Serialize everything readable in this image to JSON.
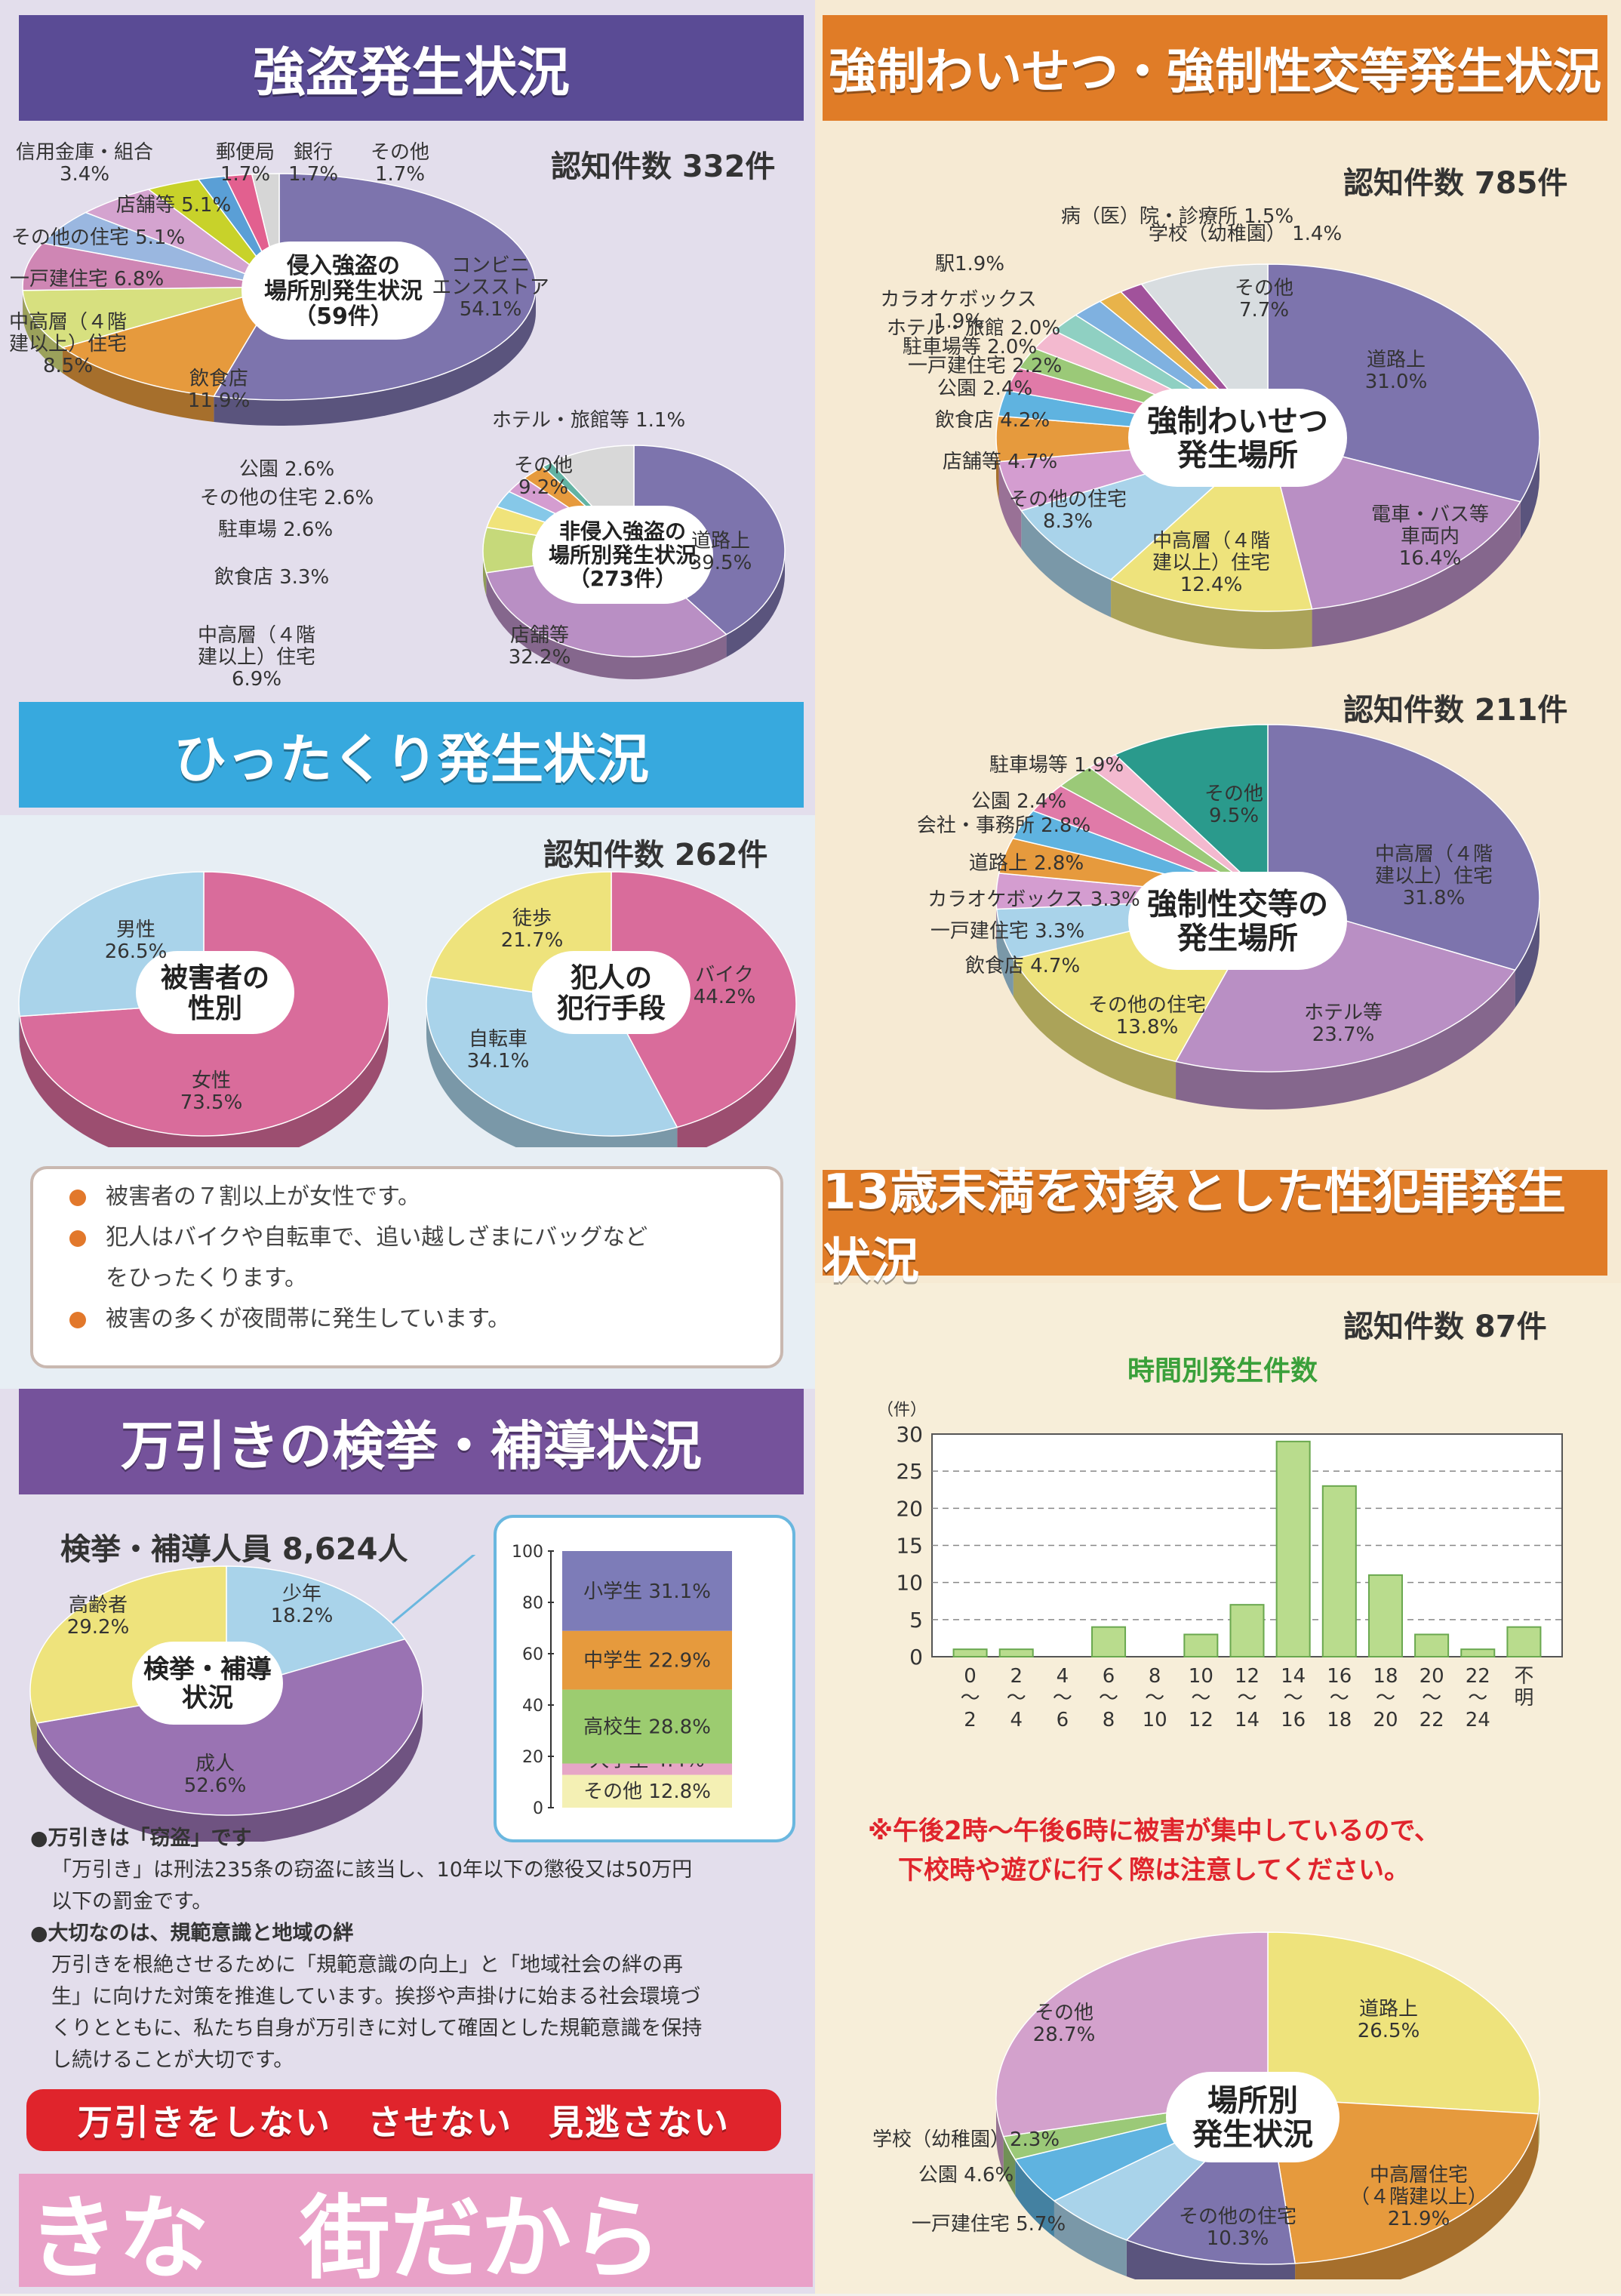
{
  "sections": {
    "robbery": {
      "title": "強盗発生状況",
      "count": "認知件数 332件"
    },
    "snatch": {
      "title": "ひったくり発生状況",
      "count": "認知件数 262件"
    },
    "shoplift": {
      "title": "万引きの検挙・補導状況",
      "count": "検挙・補導人員 8,624人"
    },
    "sexual": {
      "title": "強制わいせつ・強制性交等発生状況",
      "count1": "認知件数 785件",
      "count2": "認知件数 211件"
    },
    "under13": {
      "title": "13歳未満を対象とした性犯罪発生状況",
      "count": "認知件数 87件"
    }
  },
  "notes": {
    "items": [
      "被害者の７割以上が女性です。",
      "犯人はバイクや自転車で、追い越しざまにバッグなど",
      "をひったくります。",
      "被害の多くが夜間帯に発生しています。"
    ]
  },
  "shoplift_text": {
    "h1": "●万引きは「窃盗」です",
    "b1a": "「万引き」は刑法235条の窃盗に該当し、10年以下の懲役又は50万円",
    "b1b": "以下の罰金です。",
    "h2": "●大切なのは、規範意識と地域の絆",
    "b2a": "万引きを根絶させるために「規範意識の向上」と「地域社会の絆の再",
    "b2b": "生」に向けた対策を推進しています。挨拶や声掛けに始まる社会環境づ",
    "b2c": "くりとともに、私たち自身が万引きに対して確固とした規範意識を保持",
    "b2d": "し続けることが大切です。"
  },
  "slogan": "万引きをしない　させない　見逃さない",
  "bottom_strip": "きな　街だから",
  "footnote": {
    "line1": "※午後2時～午後6時に被害が集中しているので、",
    "line2": "下校時や遊びに行く際は注意してください。"
  },
  "colors": {
    "purple_banner": "#5c4b93",
    "blue_banner": "#35a6dc",
    "orange_banner": "#e07c27",
    "shoplift_banner": "#74519a",
    "left_bg": "#e2ddee",
    "right_bg": "#f6ead4"
  },
  "chart_data": [
    {
      "id": "robbery-intrusion",
      "type": "pie",
      "center_label": [
        "侵入強盗の",
        "場所別発生状況",
        "（59件）"
      ],
      "slices": [
        {
          "label": "コンビニエンスストア",
          "value": 54.1,
          "color": "#7d74ad"
        },
        {
          "label": "飲食店",
          "value": 11.9,
          "color": "#e69a3d"
        },
        {
          "label": "中高層（４階建以上）住宅",
          "value": 8.5,
          "color": "#d7e07f"
        },
        {
          "label": "一戸建住宅",
          "value": 6.8,
          "color": "#cf86b4"
        },
        {
          "label": "その他の住宅",
          "value": 5.1,
          "color": "#9ab7e0"
        },
        {
          "label": "店舗等",
          "value": 5.1,
          "color": "#d4a3cf"
        },
        {
          "label": "信用金庫・組合",
          "value": 3.4,
          "color": "#c8d22a"
        },
        {
          "label": "郵便局",
          "value": 1.7,
          "color": "#5a9fd6"
        },
        {
          "label": "銀行",
          "value": 1.7,
          "color": "#e2608f"
        },
        {
          "label": "その他",
          "value": 1.7,
          "color": "#d6d6d6"
        }
      ],
      "labels": [
        {
          "text": "コンビニ",
          "text2": "エンスストア",
          "text3": "54.1%"
        },
        {
          "text": "飲食店",
          "text2": "11.9%"
        },
        {
          "text": "中高層（４階",
          "text2": "建以上）住宅",
          "text3": "8.5%"
        },
        {
          "text": "一戸建住宅 6.8%"
        },
        {
          "text": "その他の住宅 5.1%"
        },
        {
          "text": "店舗等 5.1%"
        },
        {
          "text": "信用金庫・組合",
          "text2": "3.4%"
        },
        {
          "text": "郵便局",
          "text2": "1.7%"
        },
        {
          "text": "銀行",
          "text2": "1.7%"
        },
        {
          "text": "その他",
          "text2": "1.7%"
        }
      ]
    },
    {
      "id": "robbery-nonintrusion",
      "type": "pie",
      "center_label": [
        "非侵入強盗の",
        "場所別発生状況",
        "（273件）"
      ],
      "slices": [
        {
          "label": "道路上",
          "value": 39.5,
          "color": "#7d74ad"
        },
        {
          "label": "店舗等",
          "value": 32.2,
          "color": "#b98fc4"
        },
        {
          "label": "中高層（４階建以上）住宅",
          "value": 6.9,
          "color": "#c6d97a"
        },
        {
          "label": "飲食店",
          "value": 3.3,
          "color": "#f0e37a"
        },
        {
          "label": "駐車場",
          "value": 2.6,
          "color": "#86c8e8"
        },
        {
          "label": "その他の住宅",
          "value": 2.6,
          "color": "#d49dd0"
        },
        {
          "label": "公園",
          "value": 2.6,
          "color": "#e69a3d"
        },
        {
          "label": "ホテル・旅館等",
          "value": 1.1,
          "color": "#62b3a3"
        },
        {
          "label": "その他",
          "value": 9.2,
          "color": "#d8d8d8"
        }
      ],
      "labels": [
        {
          "text": "道路上",
          "text2": "39.5%"
        },
        {
          "text": "店舗等",
          "text2": "32.2%"
        },
        {
          "text": "中高層（４階",
          "text2": "建以上）住宅",
          "text3": "6.9%"
        },
        {
          "text": "飲食店 3.3%"
        },
        {
          "text": "駐車場 2.6%"
        },
        {
          "text": "その他の住宅 2.6%"
        },
        {
          "text": "公園 2.6%"
        },
        {
          "text": "ホテル・旅館等 1.1%"
        },
        {
          "text": "その他",
          "text2": "9.2%"
        }
      ]
    },
    {
      "id": "snatch-gender",
      "type": "pie",
      "center_label": [
        "被害者の",
        "性別"
      ],
      "slices": [
        {
          "label": "女性",
          "value": 73.5,
          "color": "#d96c9b"
        },
        {
          "label": "男性",
          "value": 26.5,
          "color": "#a9d3ea"
        }
      ],
      "labels": [
        {
          "text": "女性",
          "text2": "73.5%"
        },
        {
          "text": "男性",
          "text2": "26.5%"
        }
      ]
    },
    {
      "id": "snatch-method",
      "type": "pie",
      "center_label": [
        "犯人の",
        "犯行手段"
      ],
      "slices": [
        {
          "label": "バイク",
          "value": 44.2,
          "color": "#d96c9b"
        },
        {
          "label": "自転車",
          "value": 34.1,
          "color": "#a9d3ea"
        },
        {
          "label": "徒歩",
          "value": 21.7,
          "color": "#eee37c"
        }
      ],
      "labels": [
        {
          "text": "バイク",
          "text2": "44.2%"
        },
        {
          "text": "自転車",
          "text2": "34.1%"
        },
        {
          "text": "徒歩",
          "text2": "21.7%"
        }
      ]
    },
    {
      "id": "shoplift-pie",
      "type": "pie",
      "center_label": [
        "検挙・補導",
        "状況"
      ],
      "slices": [
        {
          "label": "少年",
          "value": 18.2,
          "color": "#a9d3ea"
        },
        {
          "label": "成人",
          "value": 52.6,
          "color": "#9a73b3"
        },
        {
          "label": "高齢者",
          "value": 29.2,
          "color": "#eee37c"
        }
      ],
      "labels": [
        {
          "text": "少年",
          "text2": "18.2%"
        },
        {
          "text": "成人",
          "text2": "52.6%"
        },
        {
          "text": "高齢者",
          "text2": "29.2%"
        }
      ]
    },
    {
      "id": "shoplift-juvenile",
      "type": "bar",
      "stacked": true,
      "ylim": [
        0,
        100
      ],
      "ticks": [
        "0",
        "20",
        "40",
        "60",
        "80",
        "100"
      ],
      "series": [
        {
          "name": "その他",
          "value": 12.8,
          "color": "#f4f0b4",
          "label": "その他 12.8%"
        },
        {
          "name": "大学生",
          "value": 4.4,
          "color": "#e6a6c6",
          "label": "大学生 4.4%"
        },
        {
          "name": "高校生",
          "value": 28.8,
          "color": "#9ccc70",
          "label": "高校生 28.8%"
        },
        {
          "name": "中学生",
          "value": 22.9,
          "color": "#e69a3d",
          "label": "中学生 22.9%"
        },
        {
          "name": "小学生",
          "value": 31.1,
          "color": "#7d7cb8",
          "label": "小学生 31.1%"
        }
      ]
    },
    {
      "id": "indecent-assault",
      "type": "pie",
      "center_label": [
        "強制わいせつ",
        "発生場所"
      ],
      "slices": [
        {
          "label": "道路上",
          "value": 31.0,
          "color": "#7d74ad"
        },
        {
          "label": "電車・バス等車両内",
          "value": 16.4,
          "color": "#b98fc4"
        },
        {
          "label": "中高層（４階建以上）住宅",
          "value": 12.4,
          "color": "#eee37c"
        },
        {
          "label": "その他の住宅",
          "value": 8.3,
          "color": "#a9d3ea"
        },
        {
          "label": "店舗等",
          "value": 4.7,
          "color": "#d49dd0"
        },
        {
          "label": "飲食店",
          "value": 4.2,
          "color": "#e69a3d"
        },
        {
          "label": "公園",
          "value": 2.4,
          "color": "#5fb3e0"
        },
        {
          "label": "一戸建住宅",
          "value": 2.2,
          "color": "#e07aa8"
        },
        {
          "label": "駐車場等",
          "value": 2.0,
          "color": "#9bc978"
        },
        {
          "label": "ホテル・旅館",
          "value": 2.0,
          "color": "#f3b9cf"
        },
        {
          "label": "カラオケボックス",
          "value": 1.9,
          "color": "#8fd0c2"
        },
        {
          "label": "駅",
          "value": 1.9,
          "color": "#7fb1e0"
        },
        {
          "label": "病（医）院・診療所",
          "value": 1.5,
          "color": "#e8b34a"
        },
        {
          "label": "学校（幼稚園）",
          "value": 1.4,
          "color": "#a1529b"
        },
        {
          "label": "その他",
          "value": 7.7,
          "color": "#d8dde0"
        }
      ],
      "labels": [
        {
          "text": "道路上",
          "text2": "31.0%"
        },
        {
          "text": "電車・バス等",
          "text2": "車両内",
          "text3": "16.4%"
        },
        {
          "text": "中高層（４階",
          "text2": "建以上）住宅",
          "text3": "12.4%"
        },
        {
          "text": "その他の住宅",
          "text2": "8.3%"
        },
        {
          "text": "店舗等 4.7%"
        },
        {
          "text": "飲食店 4.2%"
        },
        {
          "text": "公園 2.4%"
        },
        {
          "text": "一戸建住宅 2.2%"
        },
        {
          "text": "駐車場等 2.0%"
        },
        {
          "text": "ホテル・旅館 2.0%"
        },
        {
          "text": "カラオケボックス",
          "text2": "1.9%"
        },
        {
          "text": "駅1.9%"
        },
        {
          "text": "病（医）院・診療所 1.5%"
        },
        {
          "text": "学校（幼稚園） 1.4%"
        },
        {
          "text": "その他",
          "text2": "7.7%"
        }
      ]
    },
    {
      "id": "forced-intercourse",
      "type": "pie",
      "center_label": [
        "強制性交等の",
        "発生場所"
      ],
      "slices": [
        {
          "label": "中高層（４階建以上）住宅",
          "value": 31.8,
          "color": "#7d74ad"
        },
        {
          "label": "ホテル等",
          "value": 23.7,
          "color": "#b98fc4"
        },
        {
          "label": "その他の住宅",
          "value": 13.8,
          "color": "#eee37c"
        },
        {
          "label": "飲食店",
          "value": 4.7,
          "color": "#a9d3ea"
        },
        {
          "label": "一戸建住宅",
          "value": 3.3,
          "color": "#d49dd0"
        },
        {
          "label": "カラオケボックス",
          "value": 3.3,
          "color": "#e69a3d"
        },
        {
          "label": "道路上",
          "value": 2.8,
          "color": "#5fb3e0"
        },
        {
          "label": "会社・事務所",
          "value": 2.8,
          "color": "#e07aa8"
        },
        {
          "label": "公園",
          "value": 2.4,
          "color": "#9bc978"
        },
        {
          "label": "駐車場等",
          "value": 1.9,
          "color": "#f3b9cf"
        },
        {
          "label": "その他",
          "value": 9.5,
          "color": "#2a9a8c"
        }
      ],
      "labels": [
        {
          "text": "中高層（４階",
          "text2": "建以上）住宅",
          "text3": "31.8%"
        },
        {
          "text": "ホテル等",
          "text2": "23.7%"
        },
        {
          "text": "その他の住宅",
          "text2": "13.8%"
        },
        {
          "text": "飲食店 4.7%"
        },
        {
          "text": "一戸建住宅 3.3%"
        },
        {
          "text": "カラオケボックス 3.3%"
        },
        {
          "text": "道路上 2.8%"
        },
        {
          "text": "会社・事務所 2.8%"
        },
        {
          "text": "公園 2.4%"
        },
        {
          "text": "駐車場等 1.9%"
        },
        {
          "text": "その他",
          "text2": "9.5%"
        }
      ]
    },
    {
      "id": "under13-hourly",
      "type": "bar",
      "title": "時間別発生件数",
      "ylabel": "（件）",
      "ylim": [
        0,
        30
      ],
      "ticks": [
        "0",
        "5",
        "10",
        "15",
        "20",
        "25",
        "30"
      ],
      "categories": [
        [
          "0",
          "～",
          "2"
        ],
        [
          "2",
          "～",
          "4"
        ],
        [
          "4",
          "～",
          "6"
        ],
        [
          "6",
          "～",
          "8"
        ],
        [
          "8",
          "～",
          "10"
        ],
        [
          "10",
          "～",
          "12"
        ],
        [
          "12",
          "～",
          "14"
        ],
        [
          "14",
          "～",
          "16"
        ],
        [
          "16",
          "～",
          "18"
        ],
        [
          "18",
          "～",
          "20"
        ],
        [
          "20",
          "～",
          "22"
        ],
        [
          "22",
          "～",
          "24"
        ],
        [
          "不",
          "明"
        ]
      ],
      "values": [
        1,
        1,
        0,
        4,
        0,
        3,
        7,
        29,
        23,
        11,
        3,
        1,
        4
      ]
    },
    {
      "id": "under13-place",
      "type": "pie",
      "center_label": [
        "場所別",
        "発生状況"
      ],
      "slices": [
        {
          "label": "道路上",
          "value": 26.5,
          "color": "#eee37c"
        },
        {
          "label": "中高層住宅（４階建以上）",
          "value": 21.9,
          "color": "#e69a3d"
        },
        {
          "label": "その他の住宅",
          "value": 10.3,
          "color": "#7d74ad"
        },
        {
          "label": "一戸建住宅",
          "value": 5.7,
          "color": "#a9d3ea"
        },
        {
          "label": "公園",
          "value": 4.6,
          "color": "#5fb3e0"
        },
        {
          "label": "学校（幼稚園）",
          "value": 2.3,
          "color": "#9bc978"
        },
        {
          "label": "その他",
          "value": 28.7,
          "color": "#d3a1cc"
        }
      ],
      "labels": [
        {
          "text": "道路上",
          "text2": "26.5%"
        },
        {
          "text": "中高層住宅",
          "text2": "（４階建以上）",
          "text3": "21.9%"
        },
        {
          "text": "その他の住宅",
          "text2": "10.3%"
        },
        {
          "text": "一戸建住宅 5.7%"
        },
        {
          "text": "公園 4.6%"
        },
        {
          "text": "学校（幼稚園）2.3%"
        },
        {
          "text": "その他",
          "text2": "28.7%"
        }
      ]
    }
  ]
}
